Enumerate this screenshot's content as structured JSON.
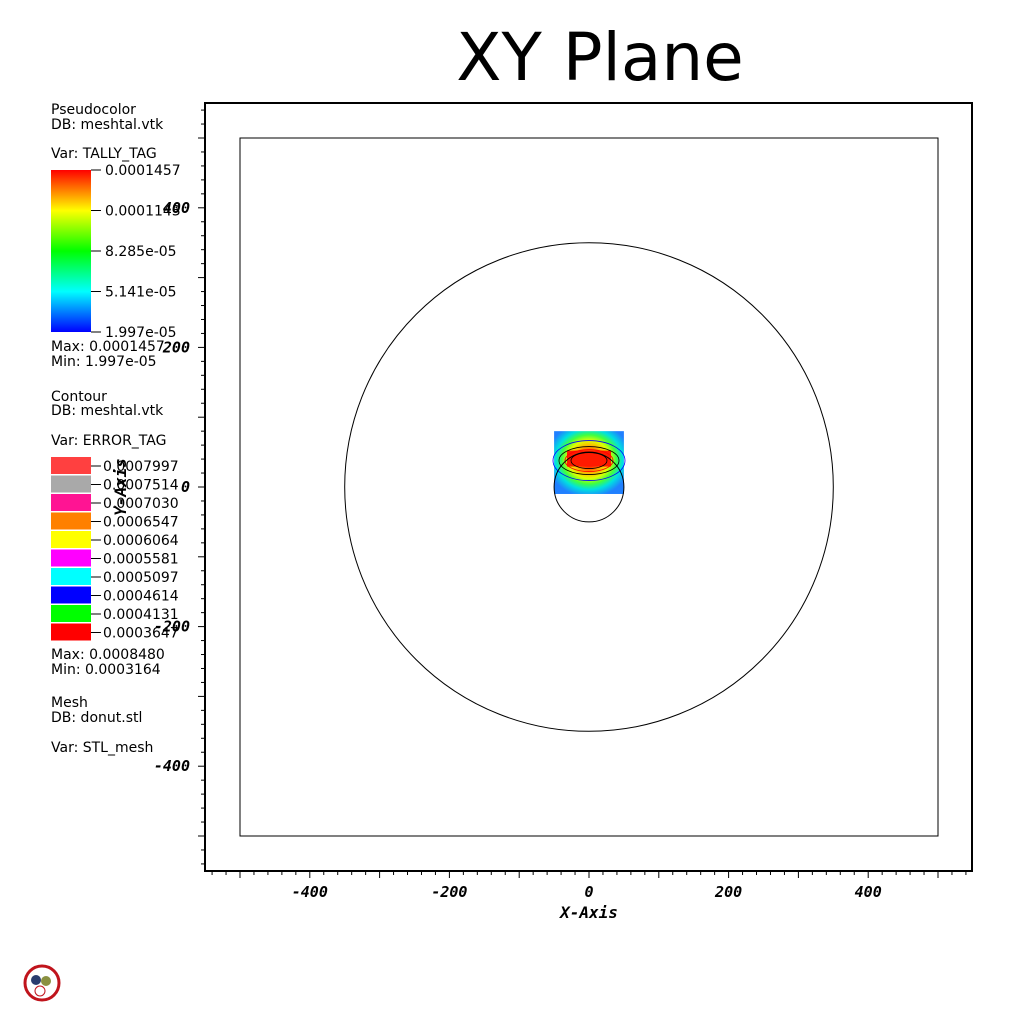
{
  "title": "XY Plane",
  "legends": {
    "pseudocolor": {
      "plot_type": "Pseudocolor",
      "db": "DB: meshtal.vtk",
      "var": "Var: TALLY_TAG",
      "ticks": [
        "0.0001457",
        "0.0001143",
        "8.285e-05",
        "5.141e-05",
        "1.997e-05"
      ],
      "max": "Max:  0.0001457",
      "min": "Min:  1.997e-05"
    },
    "contour": {
      "plot_type": "Contour",
      "db": "DB: meshtal.vtk",
      "var": "Var: ERROR_TAG",
      "levels": [
        {
          "label": "0.0007997",
          "color": "#ff4040"
        },
        {
          "label": "0.0007514",
          "color": "#a9a9a9"
        },
        {
          "label": "0.0007030",
          "color": "#ff1493"
        },
        {
          "label": "0.0006547",
          "color": "#ff8000"
        },
        {
          "label": "0.0006064",
          "color": "#ffff00"
        },
        {
          "label": "0.0005581",
          "color": "#ff00ff"
        },
        {
          "label": "0.0005097",
          "color": "#00ffff"
        },
        {
          "label": "0.0004614",
          "color": "#0000ff"
        },
        {
          "label": "0.0004131",
          "color": "#00ff00"
        },
        {
          "label": "0.0003647",
          "color": "#ff0000"
        }
      ],
      "max": "Max:  0.0008480",
      "min": "Min:  0.0003164"
    },
    "mesh": {
      "plot_type": "Mesh",
      "db": "DB: donut.stl",
      "var": "Var: STL_mesh"
    }
  },
  "chart_data": {
    "type": "heatmap",
    "title": "XY Plane",
    "xlabel": "X-Axis",
    "ylabel": "Y-Axis",
    "xlim": [
      -550,
      550
    ],
    "ylim": [
      -550,
      550
    ],
    "xticks": [
      -400,
      -200,
      0,
      200,
      400
    ],
    "yticks": [
      -400,
      -200,
      0,
      200,
      400
    ],
    "x_tick_labels": [
      "-400",
      "-200",
      "0",
      "200",
      "400"
    ],
    "y_tick_labels": [
      "-400",
      "-200",
      "0",
      "200",
      "400"
    ],
    "colormap": "hot_desaturated_rainbow",
    "color_range": [
      1.997e-05,
      0.0001457
    ],
    "mesh_square": {
      "xmin": -500,
      "xmax": 500,
      "ymin": -500,
      "ymax": 500
    },
    "mesh_circles": [
      {
        "cx": 0,
        "cy": 0,
        "r": 350
      },
      {
        "cx": 0,
        "cy": 0,
        "r": 50
      }
    ],
    "tally_region": {
      "xmin": -50,
      "xmax": 50,
      "ymin": -10,
      "ymax": 80
    },
    "hotspot": {
      "x": 0,
      "y": 35
    }
  },
  "colors": {
    "mesh_line": "#000000",
    "logo_ring": "#c0141c"
  }
}
